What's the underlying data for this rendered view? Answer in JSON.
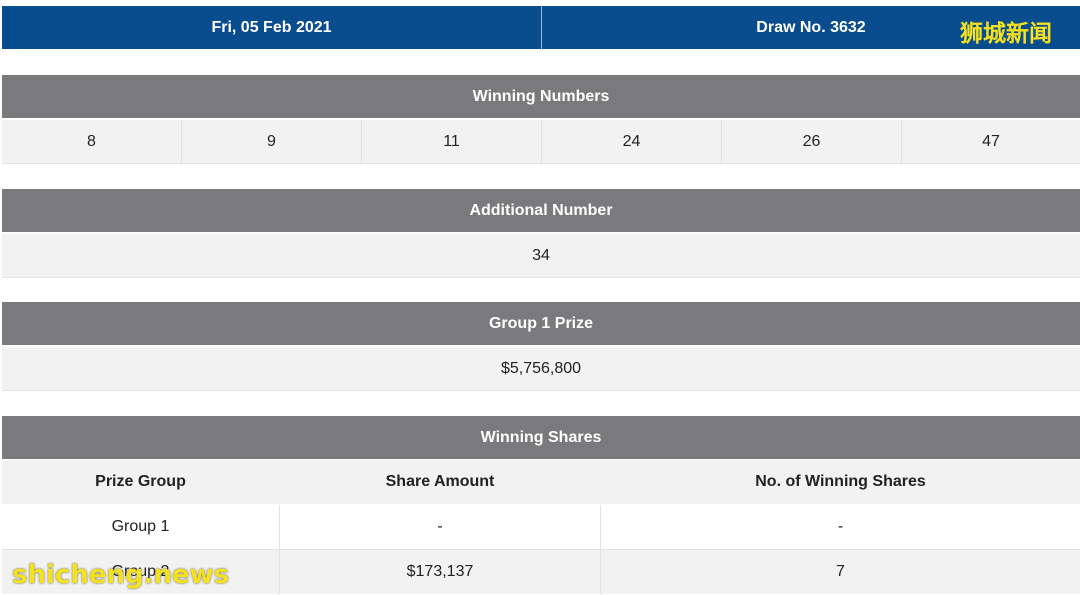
{
  "header": {
    "date": "Fri, 05 Feb 2021",
    "draw": "Draw No. 3632"
  },
  "watermark_top": "狮城新闻",
  "watermark_bottom": "shicheng.news",
  "winning_numbers": {
    "title": "Winning Numbers",
    "numbers": [
      "8",
      "9",
      "11",
      "24",
      "26",
      "47"
    ]
  },
  "additional_number": {
    "title": "Additional Number",
    "value": "34"
  },
  "group1_prize": {
    "title": "Group 1 Prize",
    "value": "$5,756,800"
  },
  "winning_shares": {
    "title": "Winning Shares",
    "columns": [
      "Prize Group",
      "Share Amount",
      "No. of Winning Shares"
    ],
    "rows": [
      {
        "group": "Group 1",
        "amount": "-",
        "shares": "-"
      },
      {
        "group": "Group 2",
        "amount": "$173,137",
        "shares": "7"
      }
    ]
  }
}
